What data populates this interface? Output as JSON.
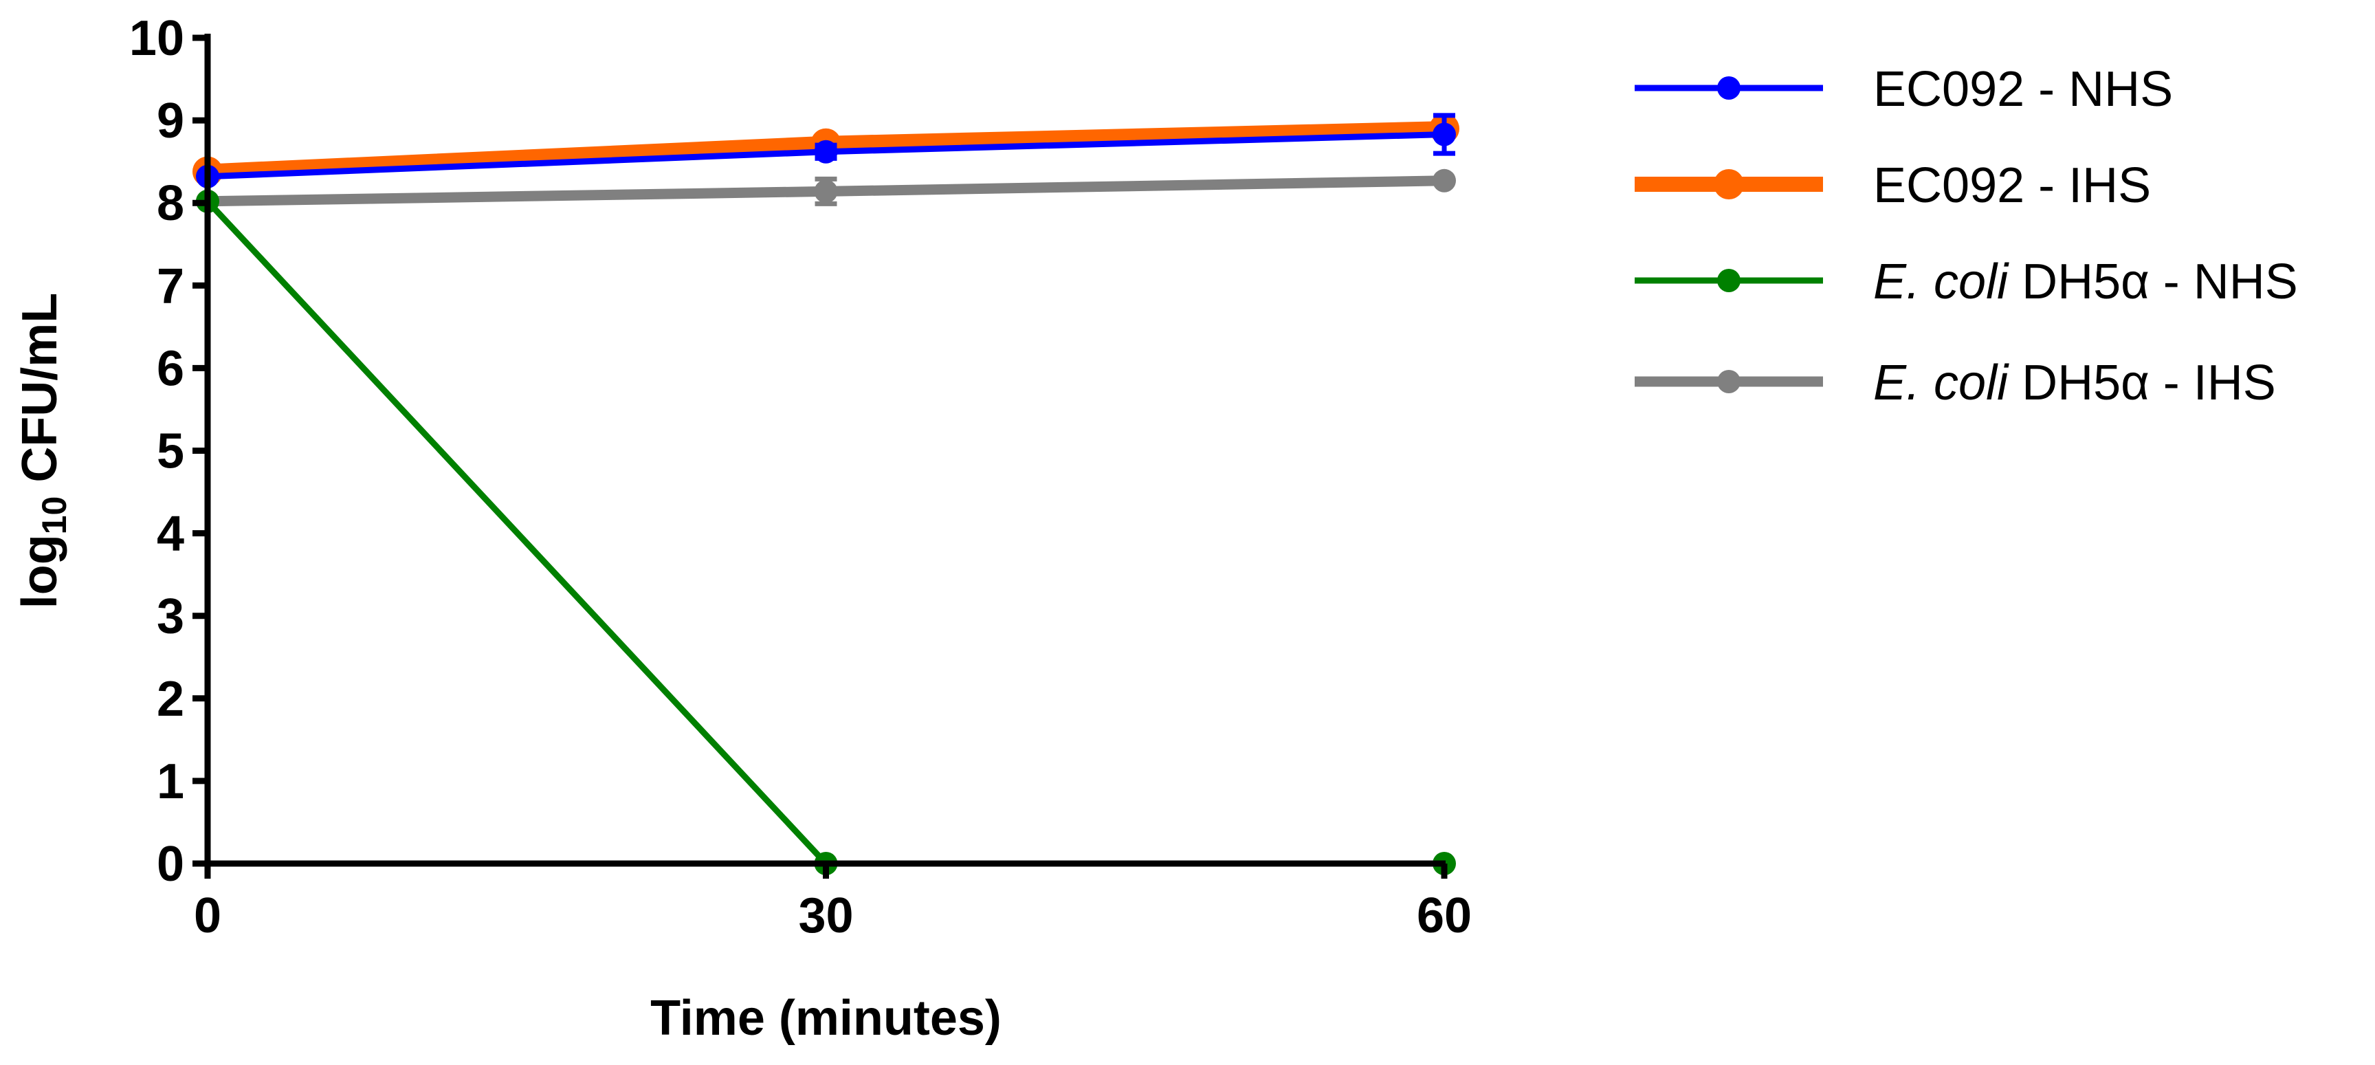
{
  "chart_data": {
    "type": "line",
    "title": "",
    "xlabel": "Time (minutes)",
    "ylabel": {
      "prefix": "log",
      "subscript": "10",
      "suffix": " CFU/mL"
    },
    "x": [
      0,
      30,
      60
    ],
    "xticks": [
      "0",
      "30",
      "60"
    ],
    "xlim": [
      0,
      60
    ],
    "ylim": [
      0,
      10
    ],
    "yticks": [
      "0",
      "1",
      "2",
      "3",
      "4",
      "5",
      "6",
      "7",
      "8",
      "9",
      "10"
    ],
    "grid": false,
    "legend_position": "right",
    "series": [
      {
        "name": "EC092 - NHS",
        "legend": {
          "italic": "",
          "main": "EC092 - NHS"
        },
        "color": "#0000ff",
        "values": [
          8.32,
          8.62,
          8.83
        ],
        "error": [
          0.05,
          0.08,
          0.23
        ],
        "width": "thin"
      },
      {
        "name": "EC092 - IHS",
        "legend": {
          "italic": "",
          "main": "EC092 - IHS"
        },
        "color": "#ff6600",
        "values": [
          8.38,
          8.72,
          8.9
        ],
        "error": [
          0.03,
          0.05,
          0.08
        ],
        "width": "thick"
      },
      {
        "name": "E. coli DH5α - NHS",
        "legend": {
          "italic": "E. coli",
          "main": " DH5α - NHS"
        },
        "color": "#008000",
        "values": [
          8.02,
          0,
          0
        ],
        "error": [
          0,
          0,
          0
        ],
        "width": "thin"
      },
      {
        "name": "E. coli DH5α - IHS",
        "legend": {
          "italic": "E. coli",
          "main": " DH5α - IHS"
        },
        "color": "#808080",
        "values": [
          8.02,
          8.14,
          8.27
        ],
        "error": [
          0.02,
          0.15,
          0.03
        ],
        "width": "medium"
      }
    ]
  }
}
